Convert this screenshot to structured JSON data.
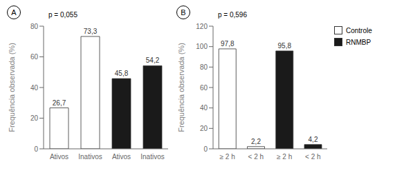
{
  "chart_data": [
    {
      "type": "bar",
      "title": "A",
      "categories": [
        "Ativos",
        "Inativos",
        "Ativos",
        "Inativos"
      ],
      "values": [
        26.7,
        73.3,
        45.8,
        54.2
      ],
      "value_labels": [
        "26,7",
        "73,3",
        "45,8",
        "54,2"
      ],
      "colors": [
        "white",
        "white",
        "#1a1a1a",
        "#1a1a1a"
      ],
      "ylabel": "Frequência observada (%)",
      "ylim": [
        0,
        80
      ],
      "yticks": [
        0,
        20,
        40,
        60,
        80
      ],
      "annotations": [
        "p = 0,055"
      ],
      "data_labels": true
    },
    {
      "type": "bar",
      "title": "B",
      "categories": [
        "≥ 2 h",
        "< 2 h",
        "≥ 2 h",
        "< 2 h"
      ],
      "series": [
        {
          "name": "Controle",
          "color": "white",
          "values": [
            97.8,
            2.2,
            null,
            null
          ],
          "value_labels": [
            "97,8",
            "2,2",
            null,
            null
          ]
        },
        {
          "name": "RNMBP",
          "color": "#1a1a1a",
          "values": [
            null,
            null,
            95.8,
            4.2
          ],
          "value_labels": [
            null,
            null,
            "95,8",
            "4,2"
          ]
        }
      ],
      "ylabel": "Frequência observada (%)",
      "ylim": [
        0,
        120
      ],
      "yticks": [
        0,
        20,
        40,
        60,
        80,
        100,
        120
      ],
      "annotations": [
        "p = 0,596"
      ],
      "data_labels": true,
      "legend": "right"
    }
  ]
}
